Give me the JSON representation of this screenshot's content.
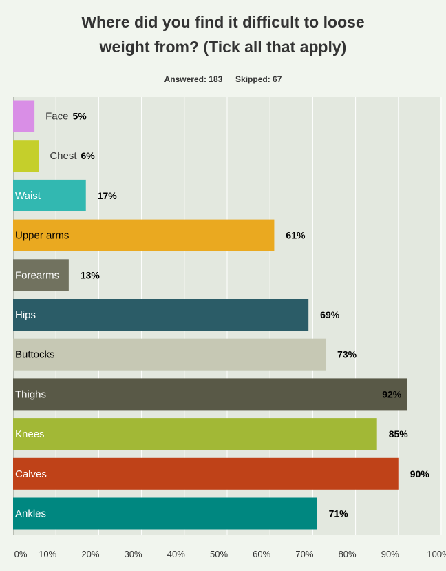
{
  "header": {
    "title_line1": "Where did you find it difficult to loose",
    "title_line2": "weight from? (Tick all that apply)",
    "answered_label": "Answered:",
    "answered_value": "183",
    "skipped_label": "Skipped:",
    "skipped_value": "67"
  },
  "chart_data": {
    "type": "bar",
    "orientation": "horizontal",
    "categories": [
      "Face",
      "Chest",
      "Waist",
      "Upper arms",
      "Forearms",
      "Hips",
      "Buttocks",
      "Thighs",
      "Knees",
      "Calves",
      "Ankles"
    ],
    "values": [
      5,
      6,
      17,
      61,
      13,
      69,
      73,
      92,
      85,
      90,
      71
    ],
    "value_labels": [
      "5%",
      "6%",
      "17%",
      "61%",
      "13%",
      "69%",
      "73%",
      "92%",
      "85%",
      "90%",
      "71%"
    ],
    "colors": [
      "#d98ee6",
      "#c5cf2b",
      "#32b8b1",
      "#eaa920",
      "#71725f",
      "#2b5c67",
      "#c6c8b4",
      "#595947",
      "#a2b836",
      "#bf4218",
      "#008780"
    ],
    "label_colors": [
      "#333333",
      "#333333",
      "#ffffff",
      "#000000",
      "#ffffff",
      "#ffffff",
      "#000000",
      "#ffffff",
      "#ffffff",
      "#ffffff",
      "#ffffff"
    ],
    "xlim": [
      0,
      100
    ],
    "ticks": [
      0,
      10,
      20,
      30,
      40,
      50,
      60,
      70,
      80,
      90,
      100
    ],
    "tick_labels": [
      "0%",
      "10%",
      "20%",
      "30%",
      "40%",
      "50%",
      "60%",
      "70%",
      "80%",
      "90%",
      "100%"
    ],
    "grid": true,
    "plot_background": "#e3e8df",
    "title": "",
    "xlabel": "",
    "ylabel": ""
  }
}
